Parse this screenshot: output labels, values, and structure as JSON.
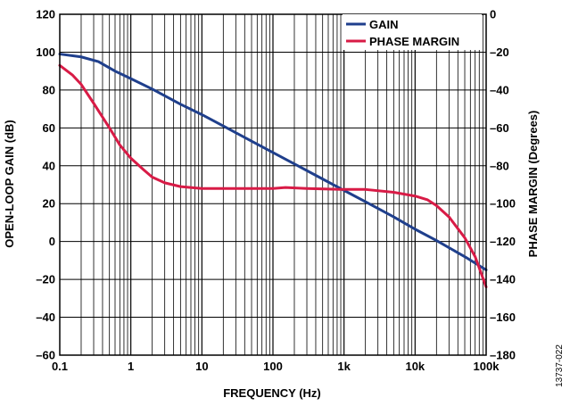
{
  "chart_data": {
    "type": "line",
    "xlabel": "FREQUENCY (Hz)",
    "ylabel": "OPEN-LOOP GAIN (dB)",
    "y2label": "PHASE MARGIN (Degrees)",
    "xscale": "log",
    "xlim": [
      0.1,
      100000
    ],
    "ylim": [
      -60,
      120
    ],
    "y2lim": [
      -180,
      0
    ],
    "x_ticks": [
      {
        "value": 0.1,
        "label": "0.1"
      },
      {
        "value": 1,
        "label": "1"
      },
      {
        "value": 10,
        "label": "10"
      },
      {
        "value": 100,
        "label": "100"
      },
      {
        "value": 1000,
        "label": "1k"
      },
      {
        "value": 10000,
        "label": "10k"
      },
      {
        "value": 100000,
        "label": "100k"
      }
    ],
    "y_ticks": [
      {
        "value": 120,
        "label": "120"
      },
      {
        "value": 100,
        "label": "100"
      },
      {
        "value": 80,
        "label": "80"
      },
      {
        "value": 60,
        "label": "60"
      },
      {
        "value": 40,
        "label": "40"
      },
      {
        "value": 20,
        "label": "20"
      },
      {
        "value": 0,
        "label": "0"
      },
      {
        "value": -20,
        "label": "–20"
      },
      {
        "value": -40,
        "label": "–40"
      },
      {
        "value": -60,
        "label": "–60"
      }
    ],
    "y2_ticks": [
      {
        "value": 0,
        "label": "0"
      },
      {
        "value": -20,
        "label": "–20"
      },
      {
        "value": -40,
        "label": "–40"
      },
      {
        "value": -60,
        "label": "–60"
      },
      {
        "value": -80,
        "label": "–80"
      },
      {
        "value": -100,
        "label": "–100"
      },
      {
        "value": -120,
        "label": "–120"
      },
      {
        "value": -140,
        "label": "–140"
      },
      {
        "value": -160,
        "label": "–160"
      },
      {
        "value": -180,
        "label": "–180"
      }
    ],
    "grid": true,
    "legend_position": "top-right",
    "series": [
      {
        "name": "GAIN",
        "axis": "left",
        "color": "#1f3f8c",
        "points": [
          [
            0.1,
            99
          ],
          [
            0.2,
            97.5
          ],
          [
            0.35,
            95
          ],
          [
            0.6,
            90
          ],
          [
            1,
            86
          ],
          [
            2,
            80.5
          ],
          [
            5,
            72.5
          ],
          [
            10,
            67
          ],
          [
            20,
            61
          ],
          [
            50,
            53
          ],
          [
            100,
            47
          ],
          [
            200,
            41
          ],
          [
            500,
            33
          ],
          [
            1000,
            27
          ],
          [
            2000,
            21
          ],
          [
            5000,
            13
          ],
          [
            10000,
            6.5
          ],
          [
            20000,
            0.5
          ],
          [
            50000,
            -8
          ],
          [
            100000,
            -15
          ]
        ]
      },
      {
        "name": "PHASE MARGIN",
        "axis": "right",
        "color": "#d81b46",
        "points": [
          [
            0.1,
            -27
          ],
          [
            0.15,
            -32
          ],
          [
            0.2,
            -37
          ],
          [
            0.3,
            -47
          ],
          [
            0.5,
            -60
          ],
          [
            0.7,
            -69
          ],
          [
            1,
            -76
          ],
          [
            1.5,
            -82
          ],
          [
            2,
            -86
          ],
          [
            3,
            -89
          ],
          [
            5,
            -91
          ],
          [
            10,
            -92
          ],
          [
            30,
            -92
          ],
          [
            100,
            -92
          ],
          [
            150,
            -91.5
          ],
          [
            300,
            -92
          ],
          [
            1000,
            -92.5
          ],
          [
            2000,
            -92.5
          ],
          [
            5000,
            -94
          ],
          [
            10000,
            -96
          ],
          [
            15000,
            -98
          ],
          [
            20000,
            -101
          ],
          [
            30000,
            -107
          ],
          [
            50000,
            -118
          ],
          [
            70000,
            -128
          ],
          [
            100000,
            -144
          ]
        ]
      }
    ],
    "figure_id": "13737-022"
  }
}
